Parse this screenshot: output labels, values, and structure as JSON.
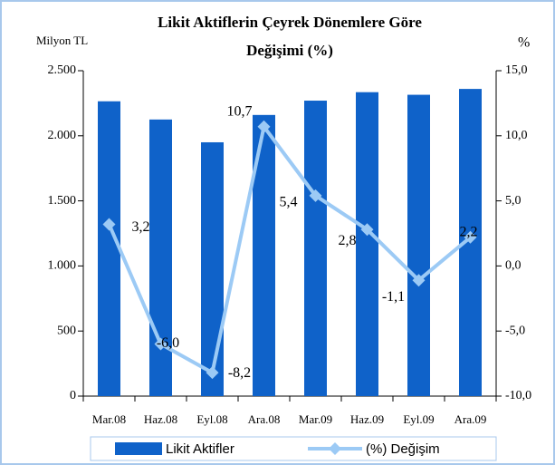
{
  "chart_data": {
    "type": "bar",
    "title": [
      "Likit Aktiflerin Çeyrek Dönemlere Göre",
      "Değişimi (%)"
    ],
    "y_label": "Milyon TL",
    "y2_label": "%",
    "categories": [
      "Mar.08",
      "Haz.08",
      "Eyl.08",
      "Ara.08",
      "Mar.09",
      "Haz.09",
      "Eyl.09",
      "Ara.09"
    ],
    "series": [
      {
        "name": "Likit Aktifler",
        "type": "bar",
        "color": "#0f62c9",
        "values": [
          2265,
          2125,
          1950,
          2160,
          2270,
          2335,
          2315,
          2360
        ]
      },
      {
        "name": "(%) Değişim",
        "type": "line",
        "axis": "y2",
        "color": "#9ccaf5",
        "values": [
          3.2,
          -6.0,
          -8.2,
          10.7,
          5.4,
          2.8,
          -1.1,
          2.2
        ],
        "value_labels": [
          "3,2",
          "-6,0",
          "-8,2",
          "10,7",
          "5,4",
          "2,8",
          "-1,1",
          "2,2"
        ]
      }
    ],
    "ylim": [
      0,
      2500
    ],
    "yticks": [
      0,
      500,
      {
        "value": 1000,
        "label": "1.000"
      },
      {
        "value": 1500,
        "label": "1.500"
      },
      {
        "value": 2000,
        "label": "2.000"
      },
      {
        "value": 2500,
        "label": "2.500"
      }
    ],
    "y2lim": [
      -10,
      15
    ],
    "y2ticks": [
      {
        "value": -10,
        "label": "-10,0"
      },
      {
        "value": -5,
        "label": "-5,0"
      },
      {
        "value": 0,
        "label": "0,0"
      },
      {
        "value": 5,
        "label": "5,0"
      },
      {
        "value": 10,
        "label": "10,0"
      },
      {
        "value": 15,
        "label": "15,0"
      }
    ],
    "legend": "bottom"
  }
}
